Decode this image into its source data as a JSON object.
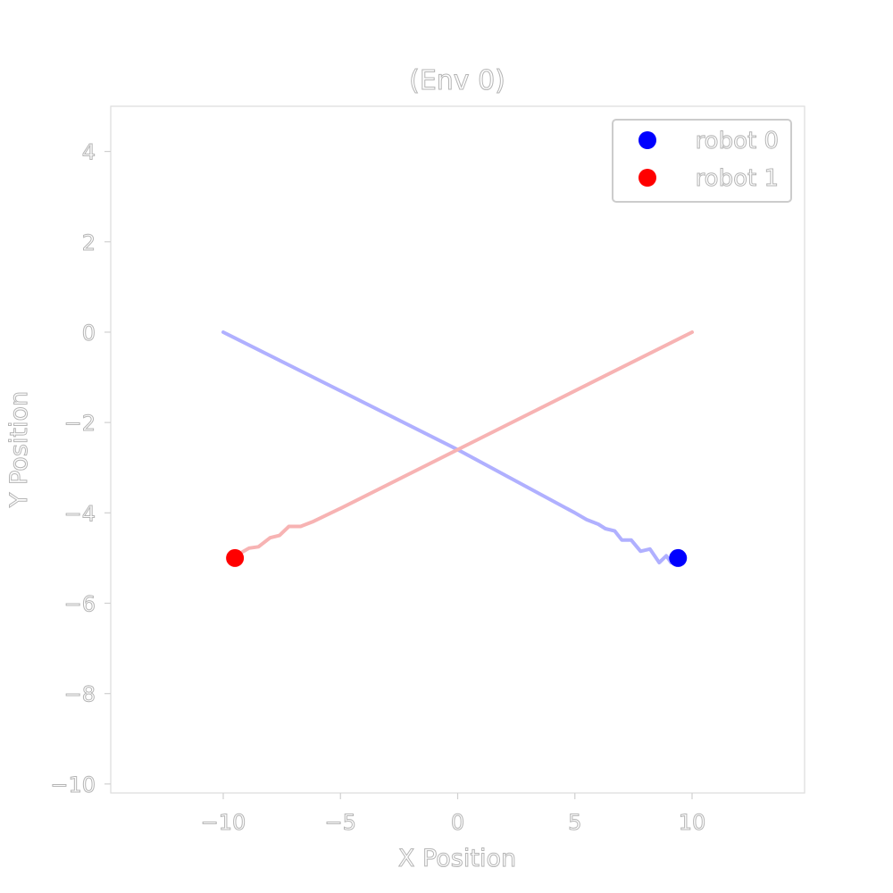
{
  "chart_data": {
    "type": "line",
    "title": "(Env 0)",
    "xlabel": "X Position",
    "ylabel": "Y Position",
    "xlim": [
      -14.8,
      14.8
    ],
    "ylim": [
      -10.2,
      5.0
    ],
    "xticks": [
      -10,
      -5,
      0,
      5,
      10
    ],
    "yticks": [
      4,
      2,
      0,
      -2,
      -4,
      -6,
      -8,
      -10
    ],
    "xtick_labels": [
      "−10",
      "−5",
      "0",
      "5",
      "10"
    ],
    "ytick_labels": [
      "4",
      "2",
      "0",
      "−2",
      "−4",
      "−6",
      "−8",
      "−10"
    ],
    "grid": false,
    "legend_position": "top-right",
    "series": [
      {
        "name": "robot 0",
        "color": "#0000ff",
        "trail_color": "#b0b0ff",
        "x": [
          -10.0,
          -5.0,
          0.0,
          5.0,
          5.5,
          6.0,
          6.3,
          6.7,
          7.0,
          7.4,
          7.8,
          8.2,
          8.6,
          8.9,
          9.1,
          9.4
        ],
        "y": [
          0.0,
          -1.3,
          -2.6,
          -4.0,
          -4.15,
          -4.25,
          -4.35,
          -4.4,
          -4.6,
          -4.6,
          -4.85,
          -4.8,
          -5.1,
          -4.95,
          -5.1,
          -5.0
        ],
        "current": [
          9.4,
          -5.0
        ]
      },
      {
        "name": "robot 1",
        "color": "#ff0000",
        "trail_color": "#f7b3b3",
        "x": [
          10.0,
          5.0,
          0.0,
          -5.0,
          -6.2,
          -6.7,
          -7.2,
          -7.6,
          -8.0,
          -8.5,
          -8.9,
          -9.3,
          -9.5
        ],
        "y": [
          0.0,
          -1.3,
          -2.6,
          -3.9,
          -4.2,
          -4.3,
          -4.3,
          -4.5,
          -4.55,
          -4.75,
          -4.78,
          -4.9,
          -5.0
        ],
        "current": [
          -9.5,
          -5.0
        ]
      }
    ]
  }
}
